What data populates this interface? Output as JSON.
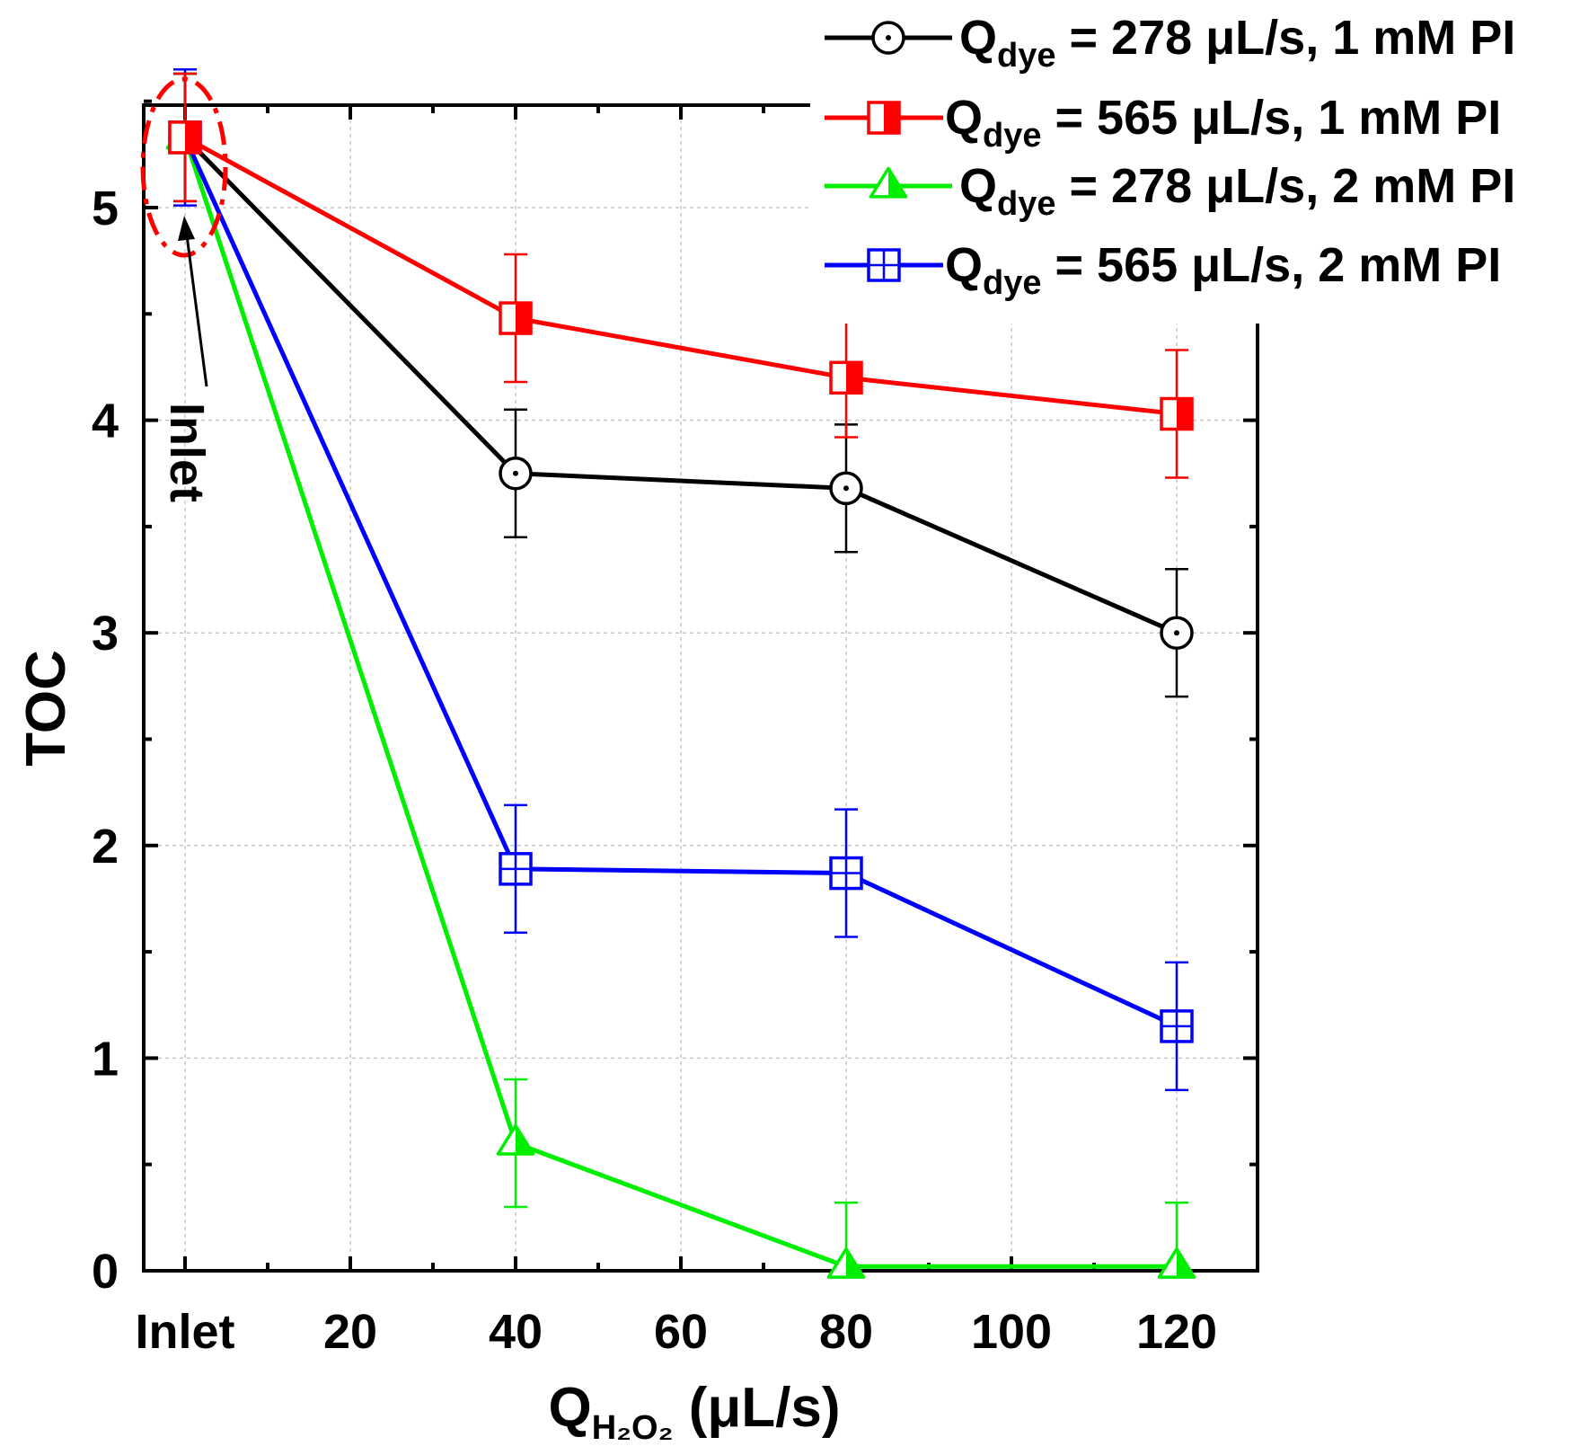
{
  "chart_data": {
    "type": "line",
    "title": "",
    "xlabel": {
      "main": "Q",
      "sub": "H₂O₂",
      "unit": " (μL/s)"
    },
    "ylabel": "TOC",
    "x_categories": [
      "Inlet",
      40,
      80,
      120
    ],
    "x_ticks": [
      "Inlet",
      "20",
      "40",
      "60",
      "80",
      "100",
      "120"
    ],
    "y_ticks": [
      "0",
      "1",
      "2",
      "3",
      "4",
      "5"
    ],
    "xlim": [
      -5,
      130
    ],
    "ylim": [
      0,
      5.5
    ],
    "grid": true,
    "legend_position": "top-right",
    "annotation": "Inlet",
    "series": [
      {
        "name": {
          "q": "Q",
          "sub": "dye",
          "rest": " = 278 μL/s, 1 mM PI"
        },
        "color": "#000000",
        "marker": "circle-dot",
        "x": [
          0,
          40,
          80,
          120
        ],
        "y": [
          5.33,
          3.75,
          3.68,
          3.0
        ],
        "err": [
          0.3,
          0.3,
          0.3,
          0.3
        ]
      },
      {
        "name": {
          "q": "Q",
          "sub": "dye",
          "rest": " = 565 μL/s, 1 mM PI"
        },
        "color": "#ff0000",
        "marker": "square-half",
        "x": [
          0,
          40,
          80,
          120
        ],
        "y": [
          5.33,
          4.48,
          4.2,
          4.03
        ],
        "err": [
          0.3,
          0.3,
          0.28,
          0.3
        ]
      },
      {
        "name": {
          "q": "Q",
          "sub": "dye",
          "rest": " = 278 μL/s, 2 mM PI"
        },
        "color": "#00ee00",
        "marker": "triangle-half",
        "x": [
          0,
          40,
          80,
          120
        ],
        "y": [
          5.33,
          0.6,
          0.02,
          0.02
        ],
        "err": [
          0.3,
          0.3,
          0.3,
          0.3
        ]
      },
      {
        "name": {
          "q": "Q",
          "sub": "dye",
          "rest": " = 565 μL/s, 2 mM PI"
        },
        "color": "#0000ff",
        "marker": "square-cross",
        "x": [
          0,
          40,
          80,
          120
        ],
        "y": [
          5.33,
          1.89,
          1.87,
          1.15
        ],
        "err": [
          0.32,
          0.3,
          0.3,
          0.3
        ]
      }
    ]
  }
}
